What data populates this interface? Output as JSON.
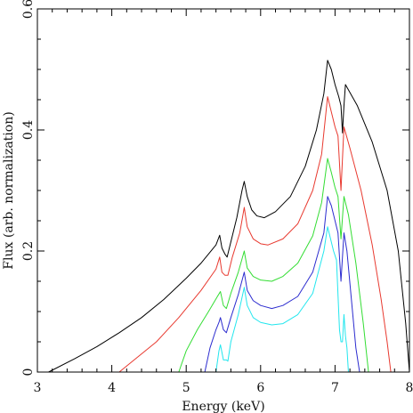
{
  "chart_data": {
    "type": "line",
    "title": "",
    "xlabel": "Energy (keV)",
    "ylabel": "Flux (arb. normalization)",
    "xlim": [
      3,
      8
    ],
    "ylim": [
      0,
      0.6
    ],
    "xticks": [
      3,
      4,
      5,
      6,
      7,
      8
    ],
    "yticks": [
      0,
      0.2,
      0.4,
      0.6
    ],
    "xtick_labels": [
      "3",
      "4",
      "5",
      "6",
      "7",
      "8"
    ],
    "ytick_labels": [
      "0",
      "0.2",
      "0.4",
      "0.6"
    ],
    "grid": false,
    "series": [
      {
        "color": "#000000",
        "x": [
          3.15,
          3.5,
          3.8,
          4.1,
          4.4,
          4.7,
          5.0,
          5.2,
          5.4,
          5.45,
          5.48,
          5.52,
          5.55,
          5.6,
          5.68,
          5.75,
          5.78,
          5.82,
          5.88,
          5.95,
          6.05,
          6.2,
          6.4,
          6.6,
          6.75,
          6.85,
          6.9,
          6.95,
          7.0,
          7.05,
          7.08,
          7.1,
          7.12,
          7.14,
          7.3,
          7.5,
          7.7,
          7.85,
          7.95,
          8.0
        ],
        "y": [
          0.0,
          0.022,
          0.042,
          0.065,
          0.09,
          0.12,
          0.155,
          0.18,
          0.21,
          0.226,
          0.205,
          0.195,
          0.19,
          0.215,
          0.255,
          0.3,
          0.315,
          0.29,
          0.268,
          0.258,
          0.255,
          0.265,
          0.29,
          0.34,
          0.4,
          0.46,
          0.515,
          0.5,
          0.475,
          0.455,
          0.44,
          0.395,
          0.44,
          0.475,
          0.44,
          0.38,
          0.3,
          0.2,
          0.08,
          0.0
        ]
      },
      {
        "color": "#e8392f",
        "x": [
          4.1,
          4.3,
          4.6,
          4.9,
          5.2,
          5.4,
          5.45,
          5.48,
          5.52,
          5.56,
          5.62,
          5.72,
          5.78,
          5.82,
          5.9,
          6.0,
          6.1,
          6.3,
          6.5,
          6.7,
          6.82,
          6.9,
          6.95,
          7.0,
          7.04,
          7.08,
          7.12,
          7.2,
          7.35,
          7.5,
          7.62,
          7.7,
          7.75
        ],
        "y": [
          0.0,
          0.02,
          0.05,
          0.09,
          0.135,
          0.17,
          0.19,
          0.165,
          0.16,
          0.16,
          0.19,
          0.23,
          0.272,
          0.24,
          0.22,
          0.212,
          0.21,
          0.22,
          0.245,
          0.3,
          0.36,
          0.455,
          0.43,
          0.405,
          0.39,
          0.3,
          0.405,
          0.37,
          0.3,
          0.21,
          0.12,
          0.05,
          0.0
        ]
      },
      {
        "color": "#33dd33",
        "x": [
          4.9,
          5.0,
          5.15,
          5.3,
          5.42,
          5.46,
          5.5,
          5.54,
          5.6,
          5.7,
          5.78,
          5.82,
          5.9,
          6.0,
          6.15,
          6.3,
          6.5,
          6.7,
          6.82,
          6.9,
          6.95,
          7.0,
          7.04,
          7.08,
          7.12,
          7.18,
          7.28,
          7.38,
          7.45
        ],
        "y": [
          0.0,
          0.035,
          0.07,
          0.1,
          0.125,
          0.133,
          0.11,
          0.105,
          0.13,
          0.165,
          0.2,
          0.172,
          0.158,
          0.152,
          0.15,
          0.158,
          0.18,
          0.225,
          0.28,
          0.353,
          0.33,
          0.305,
          0.29,
          0.22,
          0.29,
          0.26,
          0.18,
          0.08,
          0.0
        ]
      },
      {
        "color": "#2c2ccf",
        "x": [
          5.25,
          5.32,
          5.4,
          5.44,
          5.46,
          5.5,
          5.54,
          5.6,
          5.7,
          5.78,
          5.82,
          5.9,
          6.0,
          6.15,
          6.3,
          6.5,
          6.7,
          6.85,
          6.9,
          6.95,
          7.0,
          7.04,
          7.08,
          7.12,
          7.16,
          7.22,
          7.28,
          7.33
        ],
        "y": [
          0.0,
          0.04,
          0.07,
          0.082,
          0.09,
          0.07,
          0.065,
          0.09,
          0.128,
          0.165,
          0.135,
          0.118,
          0.11,
          0.105,
          0.11,
          0.125,
          0.165,
          0.23,
          0.29,
          0.275,
          0.25,
          0.23,
          0.15,
          0.23,
          0.2,
          0.12,
          0.04,
          0.0
        ]
      },
      {
        "color": "#22e6ee",
        "x": [
          5.4,
          5.44,
          5.46,
          5.5,
          5.54,
          5.56,
          5.6,
          5.7,
          5.78,
          5.82,
          5.9,
          6.0,
          6.15,
          6.3,
          6.5,
          6.7,
          6.85,
          6.9,
          6.94,
          6.98,
          7.02,
          7.06,
          7.08,
          7.1,
          7.12,
          7.14,
          7.16,
          7.18
        ],
        "y": [
          0.0,
          0.035,
          0.045,
          0.02,
          0.02,
          0.018,
          0.05,
          0.095,
          0.14,
          0.11,
          0.09,
          0.082,
          0.078,
          0.08,
          0.095,
          0.13,
          0.2,
          0.24,
          0.22,
          0.2,
          0.185,
          0.07,
          0.05,
          0.05,
          0.095,
          0.06,
          0.04,
          0.0
        ]
      }
    ]
  }
}
